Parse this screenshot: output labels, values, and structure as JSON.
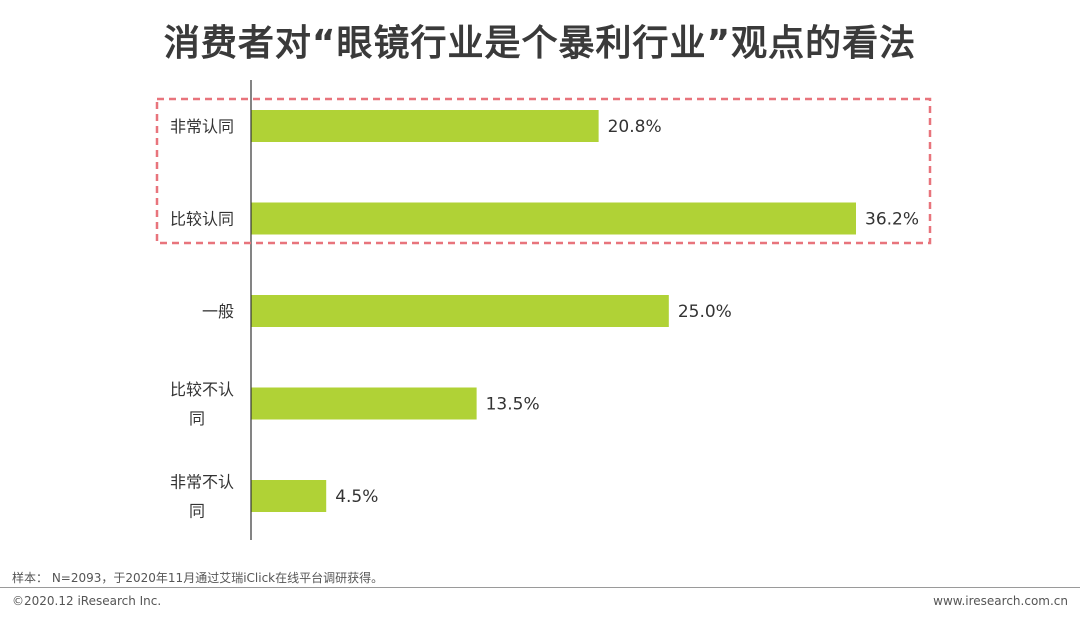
{
  "chart_data": {
    "type": "bar",
    "orientation": "horizontal",
    "title": "消费者对“眼镜行业是个暴利行业”观点的看法",
    "categories": [
      "非常认同",
      "比较认同",
      "一般",
      "比较不认同",
      "非常不认同"
    ],
    "values": [
      20.8,
      36.2,
      25.0,
      13.5,
      4.5
    ],
    "value_labels": [
      "20.8%",
      "36.2%",
      "25.0%",
      "13.5%",
      "4.5%"
    ],
    "unit": "%",
    "bar_color": "#b0d236",
    "highlight": {
      "categories": [
        "非常认同",
        "比较认同"
      ],
      "color": "#e8747c",
      "style": "dashed"
    },
    "grid": false
  },
  "footer": {
    "note": "样本： N=2093，于2020年11月通过艾瑞iClick在线平台调研获得。",
    "copyright": "©2020.12 iResearch Inc.",
    "site": "www.iresearch.com.cn"
  }
}
